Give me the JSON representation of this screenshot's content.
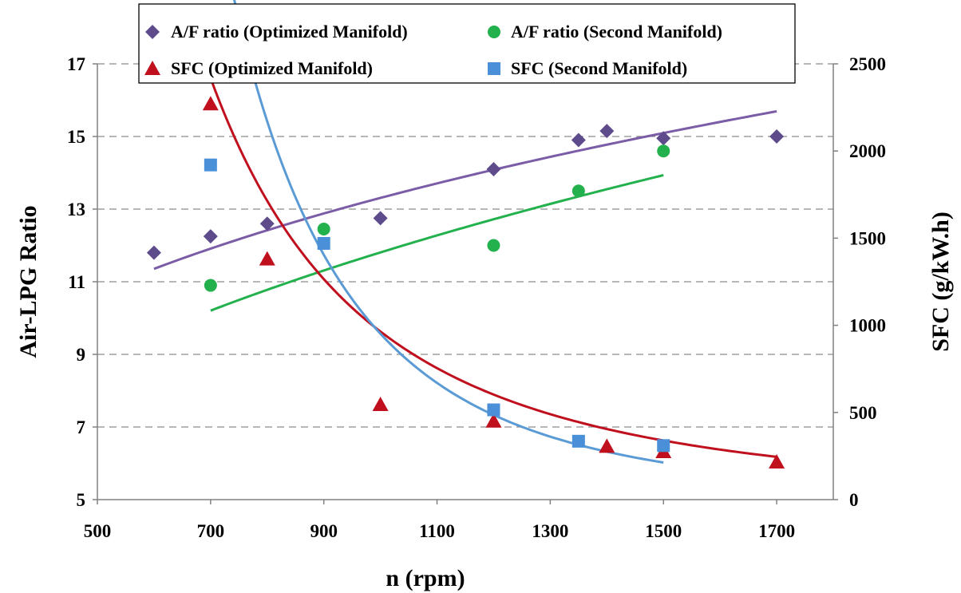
{
  "chart_data": {
    "type": "scatter",
    "xlabel": "n (rpm)",
    "ylabel": "Air-LPG Ratio",
    "y2label": "SFC (g/kW.h)",
    "xlim": [
      500,
      1800
    ],
    "ylim": [
      5,
      17
    ],
    "y2lim": [
      0,
      2500
    ],
    "xticks": [
      "500",
      "700",
      "900",
      "1100",
      "1300",
      "1500",
      "1700"
    ],
    "yticks": [
      "5",
      "7",
      "9",
      "11",
      "13",
      "15",
      "17"
    ],
    "y2ticks": [
      "0",
      "500",
      "1000",
      "1500",
      "2000",
      "2500"
    ],
    "grid": "horizontal dashed",
    "legend_position": "top",
    "series": [
      {
        "name": "A/F ratio (Optimized Manifold)",
        "axis": "left",
        "marker": "diamond",
        "color": "#5e4b8c",
        "points": [
          [
            600,
            11.8
          ],
          [
            700,
            12.25
          ],
          [
            800,
            12.6
          ],
          [
            1000,
            12.75
          ],
          [
            1200,
            14.1
          ],
          [
            1350,
            14.9
          ],
          [
            1400,
            15.15
          ],
          [
            1500,
            14.95
          ],
          [
            1700,
            15.0
          ]
        ],
        "trendline": {
          "kind": "power",
          "color": "#7b5ca6",
          "from": 600,
          "to": 1700,
          "a": 1.556,
          "b": 0.3107
        }
      },
      {
        "name": "A/F ratio (Second Manifold)",
        "axis": "left",
        "marker": "circle",
        "color": "#22b14c",
        "points": [
          [
            700,
            10.9
          ],
          [
            900,
            12.45
          ],
          [
            1200,
            12.0
          ],
          [
            1350,
            13.5
          ],
          [
            1500,
            14.6
          ]
        ],
        "trendline": {
          "kind": "power",
          "color": "#22b14c",
          "from": 700,
          "to": 1500,
          "a": 0.7015,
          "b": 0.4087
        }
      },
      {
        "name": "SFC (Optimized Manifold)",
        "axis": "right",
        "marker": "triangle",
        "color": "#c0101e",
        "points": [
          [
            700,
            2270
          ],
          [
            800,
            1380
          ],
          [
            1000,
            545
          ],
          [
            1200,
            450
          ],
          [
            1400,
            305
          ],
          [
            1500,
            275
          ],
          [
            1700,
            215
          ]
        ],
        "trendline": {
          "kind": "power",
          "color": "#c0101e",
          "from": 700,
          "to": 1700,
          "a": 52260000000.0,
          "b": -2.578
        }
      },
      {
        "name": "SFC (Second Manifold)",
        "axis": "right",
        "marker": "square",
        "color": "#4a90d9",
        "points": [
          [
            700,
            1920
          ],
          [
            900,
            1470
          ],
          [
            1200,
            515
          ],
          [
            1350,
            335
          ],
          [
            1500,
            310
          ]
        ],
        "trendline": {
          "kind": "power",
          "color": "#5b9bd5",
          "from": 710,
          "to": 1500,
          "a": 113400000000000.0,
          "b": -3.692
        }
      }
    ]
  }
}
